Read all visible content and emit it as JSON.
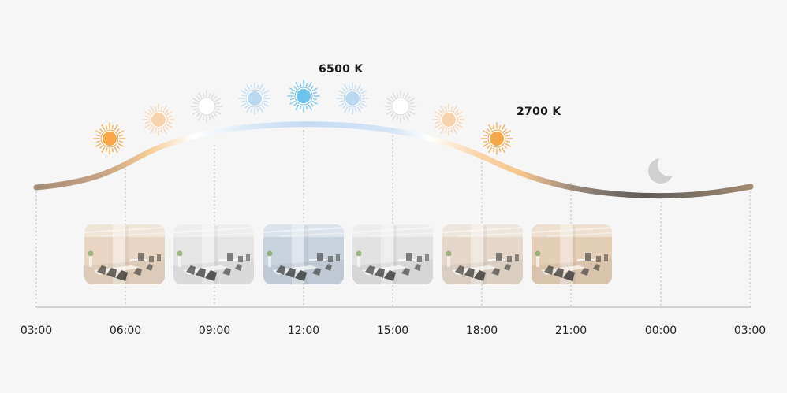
{
  "peak_label": "6500 K",
  "warm_label": "2700 K",
  "timeline": {
    "ticks": [
      "03:00",
      "06:00",
      "09:00",
      "12:00",
      "15:00",
      "18:00",
      "21:00",
      "00:00",
      "03:00"
    ]
  },
  "sun_icons": [
    {
      "name": "sun-icon-warm",
      "color": "#f7a74a"
    },
    {
      "name": "sun-icon-soft-warm",
      "color": "#f8d2ad"
    },
    {
      "name": "sun-icon-white",
      "color": "#ffffff"
    },
    {
      "name": "sun-icon-light-blue",
      "color": "#bcd9f4"
    },
    {
      "name": "sun-icon-blue",
      "color": "#6ec4ee"
    },
    {
      "name": "sun-icon-light-blue",
      "color": "#bcd9f4"
    },
    {
      "name": "sun-icon-white",
      "color": "#ffffff"
    },
    {
      "name": "sun-icon-soft-warm",
      "color": "#f8d2ad"
    },
    {
      "name": "sun-icon-warm",
      "color": "#f7a74a"
    }
  ],
  "office_photos": [
    {
      "name": "office-photo-warm-morning",
      "tint": "#e8d6c4"
    },
    {
      "name": "office-photo-neutral-white",
      "tint": "#e6e6e6"
    },
    {
      "name": "office-photo-cool-blue",
      "tint": "#c9d3df"
    },
    {
      "name": "office-photo-neutral-white",
      "tint": "#e2e2e2"
    },
    {
      "name": "office-photo-soft-warm",
      "tint": "#e6d8cb"
    },
    {
      "name": "office-photo-warm-evening",
      "tint": "#e4cfb6"
    }
  ],
  "colors": {
    "curve_warm": "#f6c890",
    "curve_cool": "#c8dcf2",
    "curve_white": "#ffffff",
    "curve_dark": "#6e6a66",
    "curve_brown": "#a08a74",
    "moon": "#d0d0d0"
  }
}
